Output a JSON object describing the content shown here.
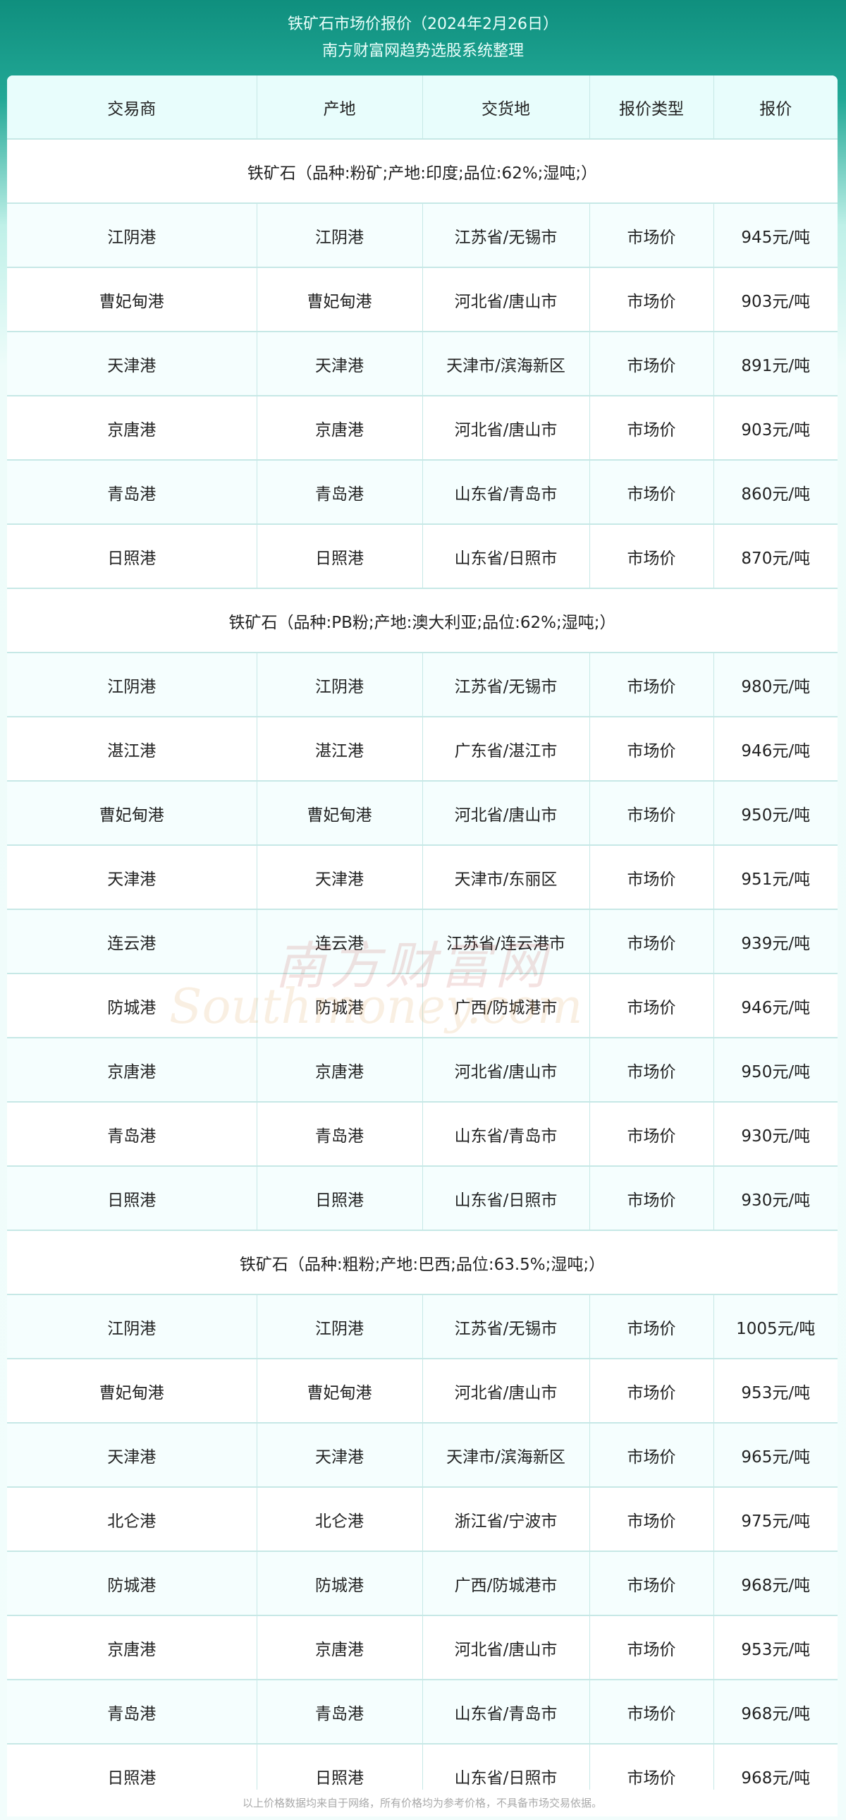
{
  "header": {
    "title": "铁矿石市场价报价（2024年2月26日）",
    "subtitle": "南方财富网趋势选股系统整理"
  },
  "table": {
    "columns": [
      "交易商",
      "产地",
      "交货地",
      "报价类型",
      "报价"
    ],
    "groups": [
      {
        "label": "铁矿石（品种:粉矿;产地:印度;品位:62%;湿吨;）",
        "rows": [
          [
            "江阴港",
            "江阴港",
            "江苏省/无锡市",
            "市场价",
            "945元/吨"
          ],
          [
            "曹妃甸港",
            "曹妃甸港",
            "河北省/唐山市",
            "市场价",
            "903元/吨"
          ],
          [
            "天津港",
            "天津港",
            "天津市/滨海新区",
            "市场价",
            "891元/吨"
          ],
          [
            "京唐港",
            "京唐港",
            "河北省/唐山市",
            "市场价",
            "903元/吨"
          ],
          [
            "青岛港",
            "青岛港",
            "山东省/青岛市",
            "市场价",
            "860元/吨"
          ],
          [
            "日照港",
            "日照港",
            "山东省/日照市",
            "市场价",
            "870元/吨"
          ]
        ]
      },
      {
        "label": "铁矿石（品种:PB粉;产地:澳大利亚;品位:62%;湿吨;）",
        "rows": [
          [
            "江阴港",
            "江阴港",
            "江苏省/无锡市",
            "市场价",
            "980元/吨"
          ],
          [
            "湛江港",
            "湛江港",
            "广东省/湛江市",
            "市场价",
            "946元/吨"
          ],
          [
            "曹妃甸港",
            "曹妃甸港",
            "河北省/唐山市",
            "市场价",
            "950元/吨"
          ],
          [
            "天津港",
            "天津港",
            "天津市/东丽区",
            "市场价",
            "951元/吨"
          ],
          [
            "连云港",
            "连云港",
            "江苏省/连云港市",
            "市场价",
            "939元/吨"
          ],
          [
            "防城港",
            "防城港",
            "广西/防城港市",
            "市场价",
            "946元/吨"
          ],
          [
            "京唐港",
            "京唐港",
            "河北省/唐山市",
            "市场价",
            "950元/吨"
          ],
          [
            "青岛港",
            "青岛港",
            "山东省/青岛市",
            "市场价",
            "930元/吨"
          ],
          [
            "日照港",
            "日照港",
            "山东省/日照市",
            "市场价",
            "930元/吨"
          ]
        ]
      },
      {
        "label": "铁矿石（品种:粗粉;产地:巴西;品位:63.5%;湿吨;）",
        "rows": [
          [
            "江阴港",
            "江阴港",
            "江苏省/无锡市",
            "市场价",
            "1005元/吨"
          ],
          [
            "曹妃甸港",
            "曹妃甸港",
            "河北省/唐山市",
            "市场价",
            "953元/吨"
          ],
          [
            "天津港",
            "天津港",
            "天津市/滨海新区",
            "市场价",
            "965元/吨"
          ],
          [
            "北仑港",
            "北仑港",
            "浙江省/宁波市",
            "市场价",
            "975元/吨"
          ],
          [
            "防城港",
            "防城港",
            "广西/防城港市",
            "市场价",
            "968元/吨"
          ],
          [
            "京唐港",
            "京唐港",
            "河北省/唐山市",
            "市场价",
            "953元/吨"
          ],
          [
            "青岛港",
            "青岛港",
            "山东省/青岛市",
            "市场价",
            "968元/吨"
          ],
          [
            "日照港",
            "日照港",
            "山东省/日照市",
            "市场价",
            "968元/吨"
          ]
        ]
      }
    ]
  },
  "footer": {
    "note": "以上价格数据均来自于网络，所有价格均为参考价格，不具备市场交易依据。"
  },
  "watermark": {
    "cn": "南方财富网",
    "en": "Southmoney.com"
  },
  "colors": {
    "header_bg": "#1a9a88",
    "table_header_bg": "#e8fdfc",
    "border": "#c6e8e6"
  }
}
